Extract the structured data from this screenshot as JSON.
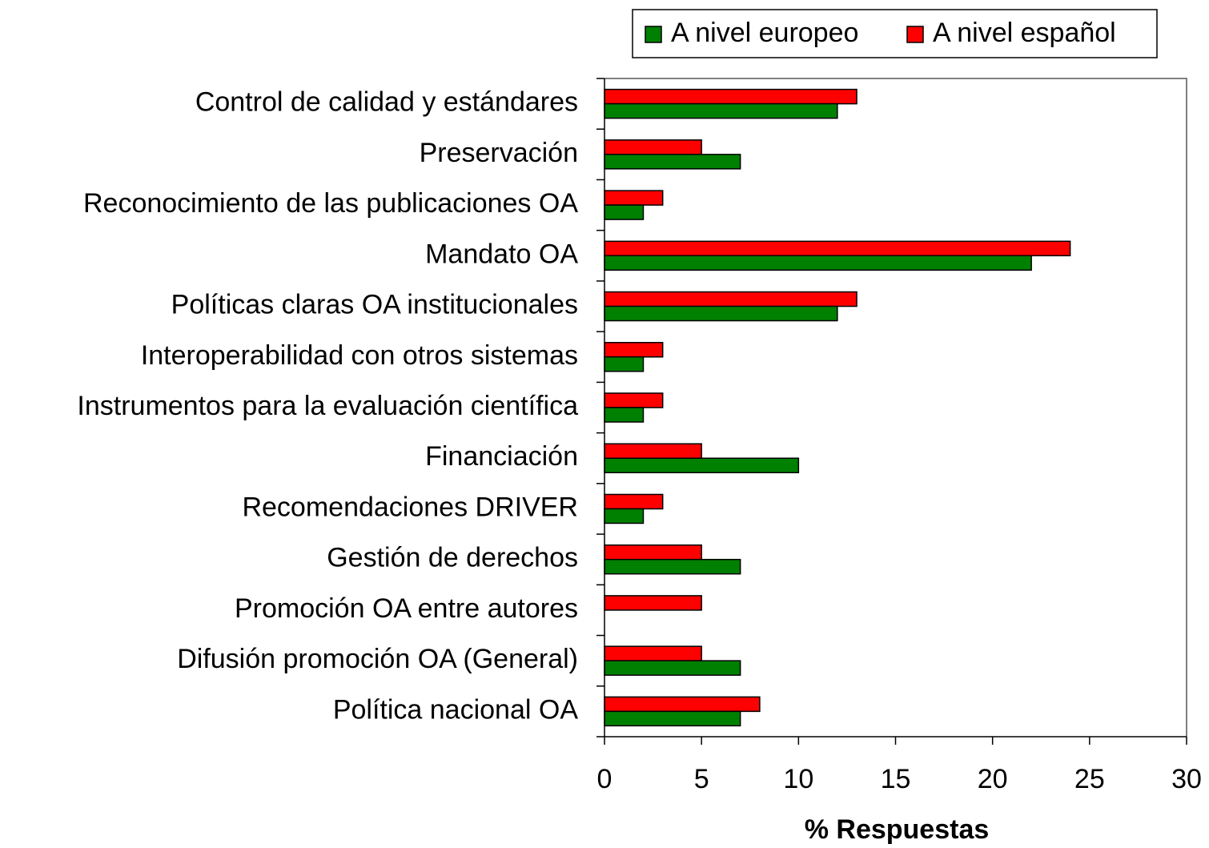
{
  "chart_data": {
    "type": "hbar",
    "categories": [
      "Control de calidad y estándares",
      "Preservación",
      "Reconocimiento de las publicaciones OA",
      "Mandato OA",
      "Políticas claras OA institucionales",
      "Interoperabilidad con otros sistemas",
      "Instrumentos para la evaluación científica",
      "Financiación",
      "Recomendaciones DRIVER",
      "Gestión de derechos",
      "Promoción OA entre autores",
      "Difusión promoción OA (General)",
      "Política nacional OA"
    ],
    "series": [
      {
        "name": "A nivel europeo",
        "color": "#008000",
        "values": [
          12,
          7,
          2,
          22,
          12,
          2,
          2,
          10,
          2,
          7,
          0,
          7,
          7
        ]
      },
      {
        "name": "A nivel español",
        "color": "#ff0000",
        "values": [
          13,
          5,
          3,
          24,
          13,
          3,
          3,
          5,
          3,
          5,
          5,
          5,
          8
        ]
      }
    ],
    "x_label": "% Respuestas",
    "xlim": [
      0,
      30
    ],
    "xticks": [
      0,
      5,
      10,
      15,
      20,
      25,
      30
    ],
    "legend": "top-right"
  }
}
